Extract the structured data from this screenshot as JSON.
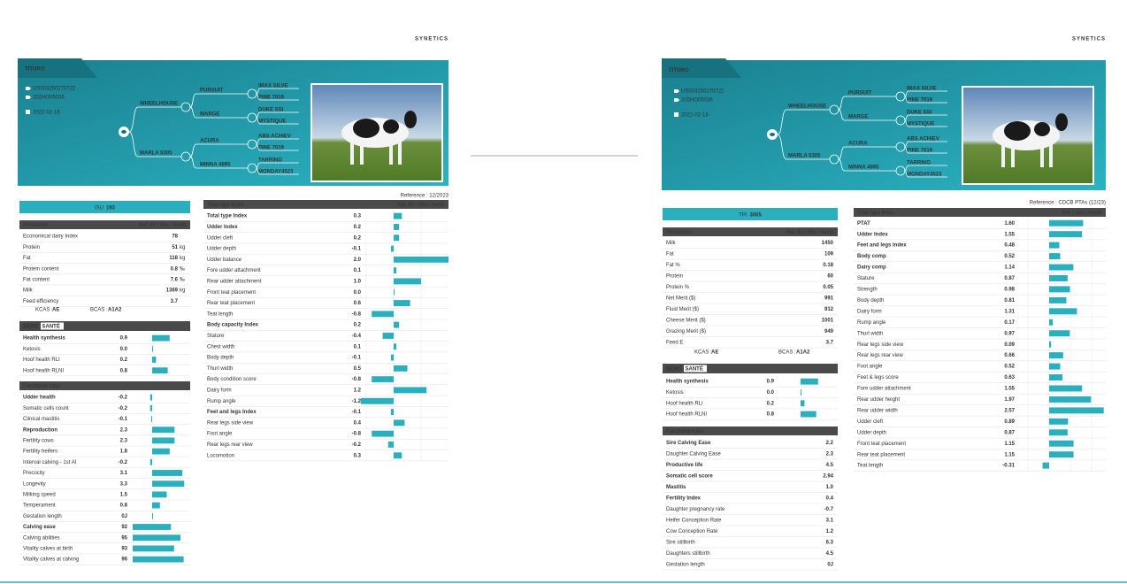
{
  "pages": [
    {
      "logo": "SYNETICS",
      "title": "TITORO",
      "ids": [
        "US003250270722",
        "202HO05036"
      ],
      "date": "2022-02-16",
      "pedigree": {
        "sire": "WHEELHOUSE",
        "dam": "MARLA 5305",
        "grandparents": [
          "PURSUIT",
          "MARGE",
          "ACURA",
          "MINNA 4895"
        ],
        "great_grandparents": [
          "IMAX SILVE",
          "PINE 7019",
          "DUKE SSI",
          "MYSTIQUE",
          "ABS ACHIEV",
          "PINE 7019",
          "TARRINO",
          "MONDAY4523"
        ]
      },
      "reference": "Reference : 12/2023",
      "index": {
        "name": "ISU",
        "value": 193
      },
      "production": {
        "title": "Production",
        "reliability": "Rel. 88 / dtrs / herds",
        "rows": [
          {
            "label": "Economical dairy Index",
            "value": 78
          },
          {
            "label": "Protein",
            "value": 51,
            "unit": "kg"
          },
          {
            "label": "Fat",
            "value": 118,
            "unit": "kg"
          },
          {
            "label": "Protein content",
            "value": 0.8,
            "unit": "‰"
          },
          {
            "label": "Fat content",
            "value": 7.6,
            "unit": "‰"
          },
          {
            "label": "Milk",
            "value": 1369,
            "unit": "kg"
          },
          {
            "label": "Feed efficiency",
            "value": 3.7
          }
        ]
      },
      "kcas": {
        "label": "KCAS :",
        "value": "AE"
      },
      "bcas": {
        "label": "BCAS :",
        "value": "A1A2"
      },
      "genosante": {
        "logo_left": "GÉNO",
        "logo_right": "SANTÉ",
        "rows": [
          {
            "label": "Health synthesis",
            "value": 0.9,
            "bold": true
          },
          {
            "label": "Ketosis",
            "value": 0,
            "value_label": "0.0"
          },
          {
            "label": "Hoof health RLI",
            "value": 0.2
          },
          {
            "label": "Hoof health RLNI",
            "value": 0.8
          }
        ]
      },
      "functional": {
        "title": "Functional traits",
        "rows": [
          {
            "label": "Udder health",
            "value": -0.2,
            "bold": true
          },
          {
            "label": "Somatic cells count",
            "value": -0.2
          },
          {
            "label": "Clinical mastitis",
            "value": -0.1
          },
          {
            "label": "Reproduction",
            "value": 2.3,
            "bold": true
          },
          {
            "label": "Fertility cows",
            "value": 2.3
          },
          {
            "label": "Fertility heifers",
            "value": 1.8
          },
          {
            "label": "Interval calving - 1st AI",
            "value": -0.2
          },
          {
            "label": "Precocity",
            "value": 3.1
          },
          {
            "label": "Longevity",
            "value": 3.3
          },
          {
            "label": "Milking speed",
            "value": 1.5
          },
          {
            "label": "Temperament",
            "value": 0.8
          },
          {
            "label": "Gestation length",
            "value": 0,
            "value_label": "0J"
          },
          {
            "label": "Calving ease",
            "value": 92,
            "bold": true
          },
          {
            "label": "Calving abilities",
            "value": 95
          },
          {
            "label": "Vitality calves at birth",
            "value": 93
          },
          {
            "label": "Vitality calves at calving",
            "value": 96
          }
        ]
      },
      "type": {
        "title": "Total type Index",
        "reliability": "Rel. 88 / dtrs / herds",
        "rows": [
          {
            "label": "Total type Index",
            "value": 0.3,
            "bold": true
          },
          {
            "label": "Udder Index",
            "value": 0.2,
            "bold": true
          },
          {
            "label": "Udder cleft",
            "value": 0.2
          },
          {
            "label": "Udder depth",
            "value": -0.1
          },
          {
            "label": "Udder balance",
            "value": 2,
            "value_label": "2.0"
          },
          {
            "label": "Fore udder attachment",
            "value": 0.1
          },
          {
            "label": "Rear udder attachment",
            "value": 1,
            "value_label": "1.0"
          },
          {
            "label": "Front teat placement",
            "value": 0,
            "value_label": "0.0"
          },
          {
            "label": "Rear teat placement",
            "value": 0.6
          },
          {
            "label": "Teat length",
            "value": -0.8
          },
          {
            "label": "Body capacity Index",
            "value": 0.2,
            "bold": true
          },
          {
            "label": "Stature",
            "value": -0.4
          },
          {
            "label": "Chest width",
            "value": 0.1
          },
          {
            "label": "Body depth",
            "value": -0.1
          },
          {
            "label": "Thurl width",
            "value": 0.5
          },
          {
            "label": "Body condition score",
            "value": -0.8
          },
          {
            "label": "Dairy form",
            "value": 1.2
          },
          {
            "label": "Rump angle",
            "value": -1.2
          },
          {
            "label": "Feet and legs Index",
            "value": -0.1,
            "bold": true
          },
          {
            "label": "Rear legs side view",
            "value": 0.4
          },
          {
            "label": "Foot angle",
            "value": -0.8
          },
          {
            "label": "Rear legs rear view",
            "value": -0.2
          },
          {
            "label": "Locomotion",
            "value": 0.3
          }
        ]
      }
    },
    {
      "logo": "SYNETICS",
      "title": "TITORO",
      "ids": [
        "US003250270722",
        "202HO05036"
      ],
      "date": "2022-02-16",
      "pedigree": {
        "sire": "WHEELHOUSE",
        "dam": "MARLA 5305",
        "grandparents": [
          "PURSUIT",
          "MARGE",
          "ACURA",
          "MINNA 4895"
        ],
        "great_grandparents": [
          "IMAX SILVE",
          "PINE 7019",
          "DUKE SSI",
          "MYSTIQUE",
          "ABS ACHIEV",
          "PINE 7019",
          "TARRINO",
          "MONDAY4523"
        ]
      },
      "reference": "Reference : CDCB PTAs (12/23)",
      "index": {
        "name": "TPI",
        "value": 3005
      },
      "production": {
        "title": "Production",
        "reliability": "Rel. 81 / dtrs / herds",
        "rows": [
          {
            "label": "Milk",
            "value": 1450
          },
          {
            "label": "Fat",
            "value": 109
          },
          {
            "label": "Fat %",
            "value": 0.18
          },
          {
            "label": "Protein",
            "value": 60
          },
          {
            "label": "Protein %",
            "value": 0.05
          },
          {
            "label": "Net Merit ($)",
            "value": 991
          },
          {
            "label": "Fluid Merit ($)",
            "value": 912
          },
          {
            "label": "Cheese Merit ($)",
            "value": 1001
          },
          {
            "label": "Grazing Merit ($)",
            "value": 949
          },
          {
            "label": "Feed E",
            "value": 3.7
          }
        ]
      },
      "kcas": {
        "label": "KCAS :",
        "value": "AE"
      },
      "bcas": {
        "label": "BCAS :",
        "value": "A1A2"
      },
      "genosante": {
        "logo_left": "GÉNO",
        "logo_right": "SANTÉ",
        "rows": [
          {
            "label": "Health synthesis",
            "value": 0.9,
            "bold": true
          },
          {
            "label": "Ketosis",
            "value": 0,
            "value_label": "0.0"
          },
          {
            "label": "Hoof health RLI",
            "value": 0.2
          },
          {
            "label": "Hoof health RLNI",
            "value": 0.8
          }
        ]
      },
      "functional": {
        "title": "Functional traits",
        "rows": [
          {
            "label": "Sire Calving Ease",
            "value": 2.2,
            "bold": true
          },
          {
            "label": "Daughter Calving Ease",
            "value": 2.3
          },
          {
            "label": "Productive life",
            "value": 4.5,
            "bold": true
          },
          {
            "label": "Somatic cell score",
            "value": 2.94,
            "bold": true
          },
          {
            "label": "Mastitis",
            "value": 1,
            "value_label": "1.0",
            "bold": true
          },
          {
            "label": "Fertility Index",
            "value": 0.4,
            "bold": true
          },
          {
            "label": "Daughter pregnancy rate",
            "value": -0.7
          },
          {
            "label": "Heifer Conception Rate",
            "value": 3.1
          },
          {
            "label": "Cow Conception Rate",
            "value": 1.2
          },
          {
            "label": "Sire stillbirth",
            "value": 6.3
          },
          {
            "label": "Daughters stillbirth",
            "value": 4.5
          },
          {
            "label": "Gestation length",
            "value": 0,
            "value_label": "0J"
          }
        ]
      },
      "type": {
        "title": "Total type Index",
        "reliability": "Rel. / dtrs / herds",
        "rows": [
          {
            "label": "PTAT",
            "value": 1.6,
            "value_label": "1.60",
            "bold": true
          },
          {
            "label": "Udder Index",
            "value": 1.55,
            "bold": true
          },
          {
            "label": "Feet and legs Index",
            "value": 0.48,
            "bold": true
          },
          {
            "label": "Body comp",
            "value": 0.52,
            "bold": true
          },
          {
            "label": "Dairy comp",
            "value": 1.14,
            "bold": true
          },
          {
            "label": "Stature",
            "value": 0.87
          },
          {
            "label": "Strength",
            "value": 0.98
          },
          {
            "label": "Body depth",
            "value": 0.81
          },
          {
            "label": "Dairy form",
            "value": 1.31
          },
          {
            "label": "Rump angle",
            "value": 0.17
          },
          {
            "label": "Thurl width",
            "value": 0.97
          },
          {
            "label": "Rear legs side view",
            "value": 0.09
          },
          {
            "label": "Rear legs rear view",
            "value": 0.66
          },
          {
            "label": "Foot angle",
            "value": 0.52
          },
          {
            "label": "Feet & legs score",
            "value": 0.63
          },
          {
            "label": "Fore udder attachment",
            "value": 1.55
          },
          {
            "label": "Rear udder height",
            "value": 1.97
          },
          {
            "label": "Rear udder width",
            "value": 2.57
          },
          {
            "label": "Udder cleft",
            "value": 0.89
          },
          {
            "label": "Udder depth",
            "value": 0.87
          },
          {
            "label": "Front teat placement",
            "value": 1.15
          },
          {
            "label": "Rear teat placement",
            "value": 1.15
          },
          {
            "label": "Teat length",
            "value": -0.31
          }
        ]
      }
    }
  ]
}
